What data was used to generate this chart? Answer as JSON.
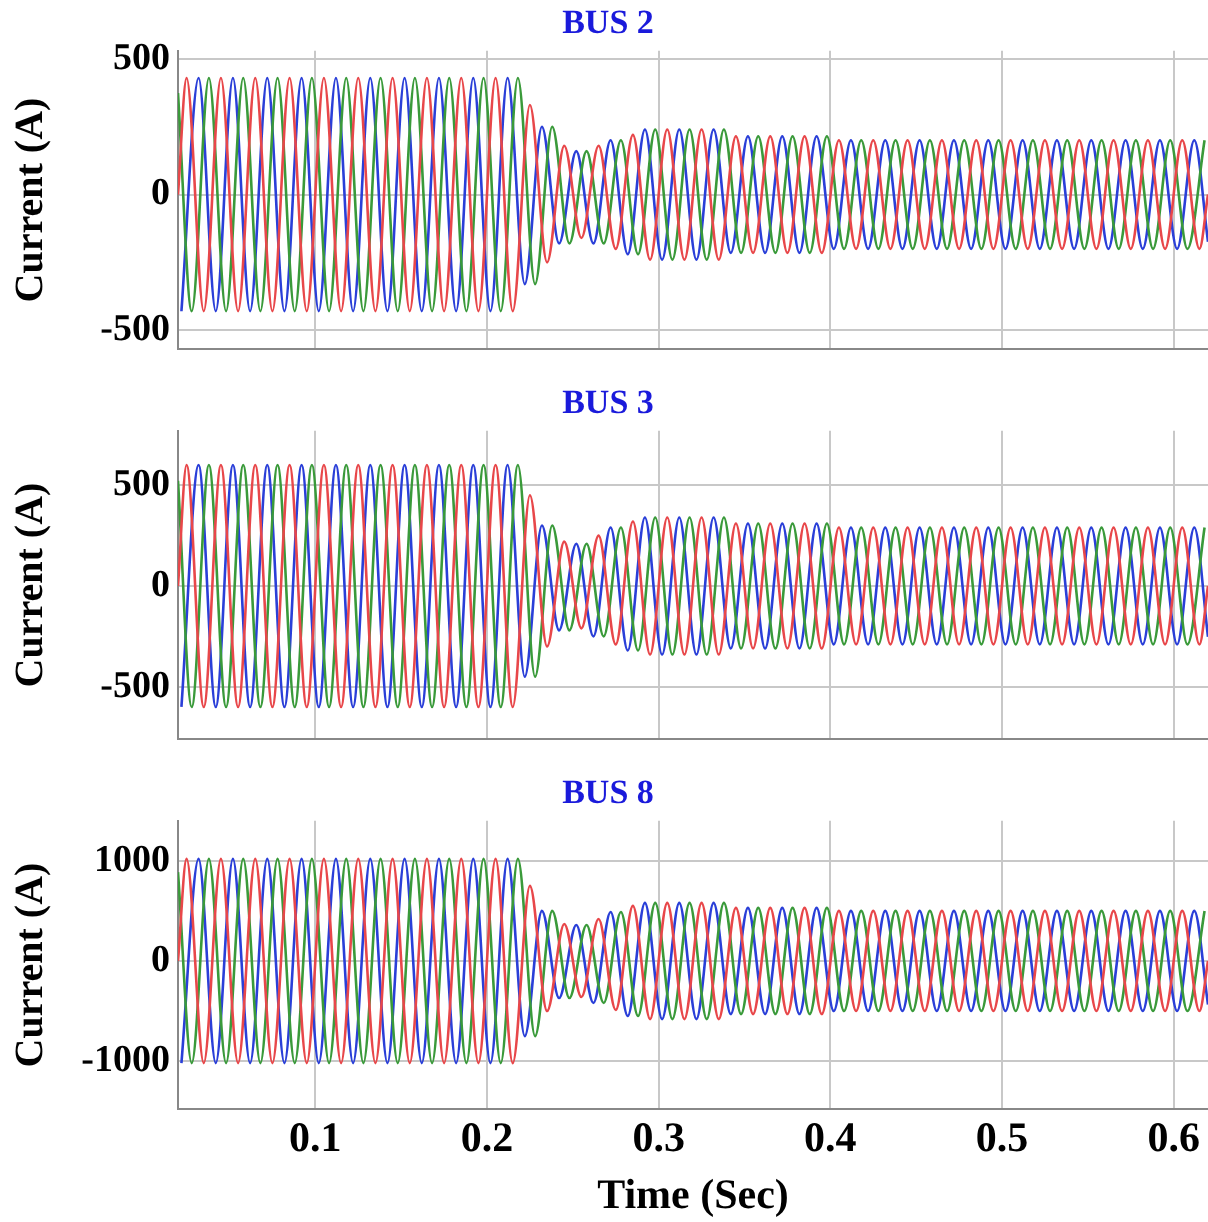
{
  "chart_data": [
    {
      "type": "line",
      "title": "BUS 2",
      "ylabel": "Current (A)",
      "xlim": [
        0.02,
        0.62
      ],
      "xticks": [
        0.1,
        0.2,
        0.3,
        0.4,
        0.5,
        0.6
      ],
      "ylim": [
        -570,
        530
      ],
      "yticks": [
        -500,
        0,
        500
      ],
      "grid": true,
      "tick_labels": "y",
      "series": [
        {
          "color": "#e8474a",
          "x": [
            0.02,
            0.025,
            0.035,
            0.045,
            0.055,
            0.065,
            0.075,
            0.085,
            0.095,
            0.105,
            0.115,
            0.125,
            0.135,
            0.145,
            0.155,
            0.165,
            0.175,
            0.185,
            0.195,
            0.205,
            0.215,
            0.225,
            0.235,
            0.245,
            0.255,
            0.265,
            0.275,
            0.285,
            0.295,
            0.305,
            0.315,
            0.325,
            0.335,
            0.345,
            0.355,
            0.365,
            0.375,
            0.385,
            0.395,
            0.405,
            0.415,
            0.425,
            0.435,
            0.445,
            0.455,
            0.465,
            0.475,
            0.485,
            0.495,
            0.505,
            0.515,
            0.525,
            0.535,
            0.545,
            0.555,
            0.565,
            0.575,
            0.585,
            0.595,
            0.605,
            0.615,
            0.62
          ],
          "values": [
            0,
            430,
            -430,
            430,
            -430,
            430,
            -430,
            430,
            -430,
            430,
            -430,
            430,
            -430,
            430,
            -430,
            430,
            -430,
            430,
            -430,
            430,
            -430,
            330,
            -250,
            180,
            -160,
            180,
            -200,
            220,
            -240,
            240,
            -240,
            240,
            -240,
            215,
            -215,
            215,
            -215,
            215,
            -215,
            200,
            -200,
            200,
            -200,
            200,
            -200,
            200,
            -200,
            200,
            -200,
            200,
            -200,
            200,
            -200,
            200,
            -200,
            200,
            -200,
            200,
            -200,
            200,
            -200,
            0
          ]
        },
        {
          "color": "#3a9a3a",
          "x": [
            0.02,
            0.028,
            0.038,
            0.048,
            0.058,
            0.068,
            0.078,
            0.088,
            0.098,
            0.108,
            0.118,
            0.128,
            0.138,
            0.148,
            0.158,
            0.168,
            0.178,
            0.188,
            0.198,
            0.208,
            0.218,
            0.228,
            0.238,
            0.248,
            0.258,
            0.268,
            0.278,
            0.288,
            0.298,
            0.308,
            0.318,
            0.328,
            0.338,
            0.348,
            0.358,
            0.368,
            0.378,
            0.388,
            0.398,
            0.408,
            0.418,
            0.428,
            0.438,
            0.448,
            0.458,
            0.468,
            0.478,
            0.488,
            0.498,
            0.508,
            0.518,
            0.528,
            0.538,
            0.548,
            0.558,
            0.568,
            0.578,
            0.588,
            0.598,
            0.608,
            0.618
          ],
          "values": [
            374,
            -430,
            430,
            -430,
            430,
            -430,
            430,
            -430,
            430,
            -430,
            430,
            -430,
            430,
            -430,
            430,
            -430,
            430,
            -430,
            430,
            -430,
            430,
            -330,
            250,
            -180,
            160,
            -180,
            200,
            -220,
            240,
            -240,
            240,
            -240,
            240,
            -215,
            215,
            -215,
            215,
            -215,
            215,
            -200,
            200,
            -200,
            200,
            -200,
            200,
            -200,
            200,
            -200,
            200,
            -200,
            200,
            -200,
            200,
            -200,
            200,
            -200,
            200,
            -200,
            200,
            -200,
            200
          ]
        },
        {
          "color": "#2a3fd8",
          "x": [
            0.022,
            0.032,
            0.042,
            0.052,
            0.062,
            0.072,
            0.082,
            0.092,
            0.102,
            0.112,
            0.122,
            0.132,
            0.142,
            0.152,
            0.162,
            0.172,
            0.182,
            0.192,
            0.202,
            0.212,
            0.222,
            0.232,
            0.242,
            0.252,
            0.262,
            0.272,
            0.282,
            0.292,
            0.302,
            0.312,
            0.322,
            0.332,
            0.342,
            0.352,
            0.362,
            0.372,
            0.382,
            0.392,
            0.402,
            0.412,
            0.422,
            0.432,
            0.442,
            0.452,
            0.462,
            0.472,
            0.482,
            0.492,
            0.502,
            0.512,
            0.522,
            0.532,
            0.542,
            0.552,
            0.562,
            0.572,
            0.582,
            0.592,
            0.602,
            0.612,
            0.62
          ],
          "values": [
            -430,
            430,
            -430,
            430,
            -430,
            430,
            -430,
            430,
            -430,
            430,
            -430,
            430,
            -430,
            430,
            -430,
            430,
            -430,
            430,
            -430,
            430,
            -330,
            250,
            -180,
            160,
            -180,
            200,
            -220,
            240,
            -240,
            240,
            -240,
            240,
            -215,
            215,
            -215,
            215,
            -215,
            215,
            -200,
            200,
            -200,
            200,
            -200,
            200,
            -200,
            200,
            -200,
            200,
            -200,
            200,
            -200,
            200,
            -200,
            200,
            -200,
            200,
            -200,
            200,
            -200,
            200,
            -174
          ]
        }
      ]
    },
    {
      "type": "line",
      "title": "BUS 3",
      "ylabel": "Current (A)",
      "xlim": [
        0.02,
        0.62
      ],
      "xticks": [
        0.1,
        0.2,
        0.3,
        0.4,
        0.5,
        0.6
      ],
      "ylim": [
        -760,
        770
      ],
      "yticks": [
        -500,
        0,
        500
      ],
      "grid": true,
      "tick_labels": "y",
      "series": [
        {
          "color": "#e8474a",
          "x": [
            0.02,
            0.025,
            0.035,
            0.045,
            0.055,
            0.065,
            0.075,
            0.085,
            0.095,
            0.105,
            0.115,
            0.125,
            0.135,
            0.145,
            0.155,
            0.165,
            0.175,
            0.185,
            0.195,
            0.205,
            0.215,
            0.225,
            0.235,
            0.245,
            0.255,
            0.265,
            0.275,
            0.285,
            0.295,
            0.305,
            0.315,
            0.325,
            0.335,
            0.345,
            0.355,
            0.365,
            0.375,
            0.385,
            0.395,
            0.405,
            0.415,
            0.425,
            0.435,
            0.445,
            0.455,
            0.465,
            0.475,
            0.485,
            0.495,
            0.505,
            0.515,
            0.525,
            0.535,
            0.545,
            0.555,
            0.565,
            0.575,
            0.585,
            0.595,
            0.605,
            0.615,
            0.62
          ],
          "values": [
            0,
            600,
            -600,
            600,
            -600,
            600,
            -600,
            600,
            -600,
            600,
            -600,
            600,
            -600,
            600,
            -600,
            600,
            -600,
            600,
            -600,
            600,
            -600,
            450,
            -300,
            220,
            -210,
            250,
            -290,
            320,
            -340,
            340,
            -340,
            340,
            -340,
            310,
            -310,
            310,
            -310,
            310,
            -310,
            290,
            -290,
            290,
            -290,
            290,
            -290,
            290,
            -290,
            290,
            -290,
            290,
            -290,
            290,
            -290,
            290,
            -290,
            290,
            -290,
            290,
            -290,
            290,
            -290,
            0
          ]
        },
        {
          "color": "#3a9a3a",
          "x": [
            0.02,
            0.028,
            0.038,
            0.048,
            0.058,
            0.068,
            0.078,
            0.088,
            0.098,
            0.108,
            0.118,
            0.128,
            0.138,
            0.148,
            0.158,
            0.168,
            0.178,
            0.188,
            0.198,
            0.208,
            0.218,
            0.228,
            0.238,
            0.248,
            0.258,
            0.268,
            0.278,
            0.288,
            0.298,
            0.308,
            0.318,
            0.328,
            0.338,
            0.348,
            0.358,
            0.368,
            0.378,
            0.388,
            0.398,
            0.408,
            0.418,
            0.428,
            0.438,
            0.448,
            0.458,
            0.468,
            0.478,
            0.488,
            0.498,
            0.508,
            0.518,
            0.528,
            0.538,
            0.548,
            0.558,
            0.568,
            0.578,
            0.588,
            0.598,
            0.608,
            0.618
          ],
          "values": [
            522,
            -600,
            600,
            -600,
            600,
            -600,
            600,
            -600,
            600,
            -600,
            600,
            -600,
            600,
            -600,
            600,
            -600,
            600,
            -600,
            600,
            -600,
            600,
            -450,
            300,
            -220,
            210,
            -250,
            290,
            -320,
            340,
            -340,
            340,
            -340,
            340,
            -310,
            310,
            -310,
            310,
            -310,
            310,
            -290,
            290,
            -290,
            290,
            -290,
            290,
            -290,
            290,
            -290,
            290,
            -290,
            290,
            -290,
            290,
            -290,
            290,
            -290,
            290,
            -290,
            290,
            -290,
            290
          ]
        },
        {
          "color": "#2a3fd8",
          "x": [
            0.022,
            0.032,
            0.042,
            0.052,
            0.062,
            0.072,
            0.082,
            0.092,
            0.102,
            0.112,
            0.122,
            0.132,
            0.142,
            0.152,
            0.162,
            0.172,
            0.182,
            0.192,
            0.202,
            0.212,
            0.222,
            0.232,
            0.242,
            0.252,
            0.262,
            0.272,
            0.282,
            0.292,
            0.302,
            0.312,
            0.322,
            0.332,
            0.342,
            0.352,
            0.362,
            0.372,
            0.382,
            0.392,
            0.402,
            0.412,
            0.422,
            0.432,
            0.442,
            0.452,
            0.462,
            0.472,
            0.482,
            0.492,
            0.502,
            0.512,
            0.522,
            0.532,
            0.542,
            0.552,
            0.562,
            0.572,
            0.582,
            0.592,
            0.602,
            0.612,
            0.62
          ],
          "values": [
            -600,
            600,
            -600,
            600,
            -600,
            600,
            -600,
            600,
            -600,
            600,
            -600,
            600,
            -600,
            600,
            -600,
            600,
            -600,
            600,
            -600,
            600,
            -450,
            300,
            -220,
            210,
            -250,
            290,
            -320,
            340,
            -340,
            340,
            -340,
            340,
            -310,
            310,
            -310,
            310,
            -310,
            310,
            -290,
            290,
            -290,
            290,
            -290,
            290,
            -290,
            290,
            -290,
            290,
            -290,
            290,
            -290,
            290,
            -290,
            290,
            -290,
            290,
            -290,
            290,
            -290,
            290,
            -252
          ]
        }
      ]
    },
    {
      "type": "line",
      "title": "BUS 8",
      "xlabel": "Time (Sec)",
      "ylabel": "Current (A)",
      "xlim": [
        0.02,
        0.62
      ],
      "xticks": [
        0.1,
        0.2,
        0.3,
        0.4,
        0.5,
        0.6
      ],
      "ylim": [
        -1480,
        1400
      ],
      "yticks": [
        -1000,
        0,
        1000
      ],
      "grid": true,
      "series": [
        {
          "color": "#e8474a",
          "x": [
            0.02,
            0.025,
            0.035,
            0.045,
            0.055,
            0.065,
            0.075,
            0.085,
            0.095,
            0.105,
            0.115,
            0.125,
            0.135,
            0.145,
            0.155,
            0.165,
            0.175,
            0.185,
            0.195,
            0.205,
            0.215,
            0.225,
            0.235,
            0.245,
            0.255,
            0.265,
            0.275,
            0.285,
            0.295,
            0.305,
            0.315,
            0.325,
            0.335,
            0.345,
            0.355,
            0.365,
            0.375,
            0.385,
            0.395,
            0.405,
            0.415,
            0.425,
            0.435,
            0.445,
            0.455,
            0.465,
            0.475,
            0.485,
            0.495,
            0.505,
            0.515,
            0.525,
            0.535,
            0.545,
            0.555,
            0.565,
            0.575,
            0.585,
            0.595,
            0.605,
            0.615,
            0.62
          ],
          "values": [
            0,
            1020,
            -1020,
            1020,
            -1020,
            1020,
            -1020,
            1020,
            -1020,
            1020,
            -1020,
            1020,
            -1020,
            1020,
            -1020,
            1020,
            -1020,
            1020,
            -1020,
            1020,
            -1020,
            750,
            -500,
            370,
            -360,
            420,
            -490,
            550,
            -580,
            580,
            -580,
            580,
            -580,
            530,
            -530,
            530,
            -530,
            530,
            -530,
            500,
            -500,
            500,
            -500,
            500,
            -500,
            500,
            -500,
            500,
            -500,
            500,
            -500,
            500,
            -500,
            500,
            -500,
            500,
            -500,
            500,
            -500,
            500,
            -500,
            0
          ]
        },
        {
          "color": "#3a9a3a",
          "x": [
            0.02,
            0.028,
            0.038,
            0.048,
            0.058,
            0.068,
            0.078,
            0.088,
            0.098,
            0.108,
            0.118,
            0.128,
            0.138,
            0.148,
            0.158,
            0.168,
            0.178,
            0.188,
            0.198,
            0.208,
            0.218,
            0.228,
            0.238,
            0.248,
            0.258,
            0.268,
            0.278,
            0.288,
            0.298,
            0.308,
            0.318,
            0.328,
            0.338,
            0.348,
            0.358,
            0.368,
            0.378,
            0.388,
            0.398,
            0.408,
            0.418,
            0.428,
            0.438,
            0.448,
            0.458,
            0.468,
            0.478,
            0.488,
            0.498,
            0.508,
            0.518,
            0.528,
            0.538,
            0.548,
            0.558,
            0.568,
            0.578,
            0.588,
            0.598,
            0.608,
            0.618
          ],
          "values": [
            887,
            -1020,
            1020,
            -1020,
            1020,
            -1020,
            1020,
            -1020,
            1020,
            -1020,
            1020,
            -1020,
            1020,
            -1020,
            1020,
            -1020,
            1020,
            -1020,
            1020,
            -1020,
            1020,
            -750,
            500,
            -370,
            360,
            -420,
            490,
            -550,
            580,
            -580,
            580,
            -580,
            580,
            -530,
            530,
            -530,
            530,
            -530,
            530,
            -500,
            500,
            -500,
            500,
            -500,
            500,
            -500,
            500,
            -500,
            500,
            -500,
            500,
            -500,
            500,
            -500,
            500,
            -500,
            500,
            -500,
            500,
            -500,
            500
          ]
        },
        {
          "color": "#2a3fd8",
          "x": [
            0.022,
            0.032,
            0.042,
            0.052,
            0.062,
            0.072,
            0.082,
            0.092,
            0.102,
            0.112,
            0.122,
            0.132,
            0.142,
            0.152,
            0.162,
            0.172,
            0.182,
            0.192,
            0.202,
            0.212,
            0.222,
            0.232,
            0.242,
            0.252,
            0.262,
            0.272,
            0.282,
            0.292,
            0.302,
            0.312,
            0.322,
            0.332,
            0.342,
            0.352,
            0.362,
            0.372,
            0.382,
            0.392,
            0.402,
            0.412,
            0.422,
            0.432,
            0.442,
            0.452,
            0.462,
            0.472,
            0.482,
            0.492,
            0.502,
            0.512,
            0.522,
            0.532,
            0.542,
            0.552,
            0.562,
            0.572,
            0.582,
            0.592,
            0.602,
            0.612,
            0.62
          ],
          "values": [
            -1020,
            1020,
            -1020,
            1020,
            -1020,
            1020,
            -1020,
            1020,
            -1020,
            1020,
            -1020,
            1020,
            -1020,
            1020,
            -1020,
            1020,
            -1020,
            1020,
            -1020,
            1020,
            -750,
            500,
            -370,
            360,
            -420,
            490,
            -550,
            580,
            -580,
            580,
            -580,
            580,
            -530,
            530,
            -530,
            530,
            -530,
            530,
            -500,
            500,
            -500,
            500,
            -500,
            500,
            -500,
            500,
            -500,
            500,
            -500,
            500,
            -500,
            500,
            -500,
            500,
            -500,
            500,
            -500,
            500,
            -500,
            500,
            -435
          ]
        }
      ]
    }
  ]
}
